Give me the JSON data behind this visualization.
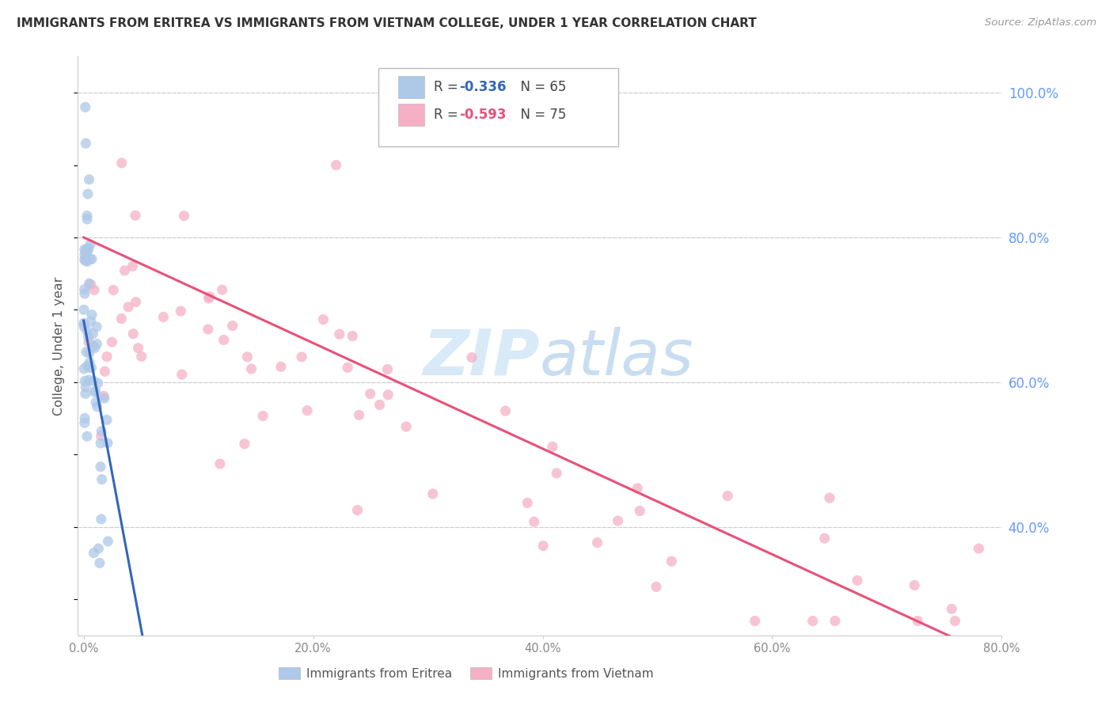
{
  "title": "IMMIGRANTS FROM ERITREA VS IMMIGRANTS FROM VIETNAM COLLEGE, UNDER 1 YEAR CORRELATION CHART",
  "source": "Source: ZipAtlas.com",
  "ylabel": "College, Under 1 year",
  "eritrea_R": "-0.336",
  "eritrea_N": "65",
  "vietnam_R": "-0.593",
  "vietnam_N": "75",
  "eritrea_color": "#adc8e8",
  "eritrea_line_color": "#3366bb",
  "vietnam_color": "#f5b0c5",
  "vietnam_line_color": "#e8507a",
  "dashed_line_color": "#c0c0c0",
  "grid_color": "#d0d0d0",
  "title_color": "#333333",
  "right_axis_color": "#6699ff",
  "source_color": "#999999",
  "watermark_zip_color": "#d8eaf8",
  "watermark_atlas_color": "#c8ddf0",
  "legend_label_eritrea": "Immigrants from Eritrea",
  "legend_label_vietnam": "Immigrants from Vietnam",
  "xlim": [
    0.0,
    0.8
  ],
  "ylim": [
    0.25,
    1.05
  ],
  "xticks": [
    0.0,
    0.2,
    0.4,
    0.6,
    0.8
  ],
  "yticks_right": [
    0.4,
    0.6,
    0.8,
    1.0
  ],
  "xticklabels": [
    "0.0%",
    "20.0%",
    "40.0%",
    "60.0%",
    "80.0%"
  ],
  "yticklabels_right": [
    "40.0%",
    "60.0%",
    "80.0%",
    "100.0%"
  ]
}
